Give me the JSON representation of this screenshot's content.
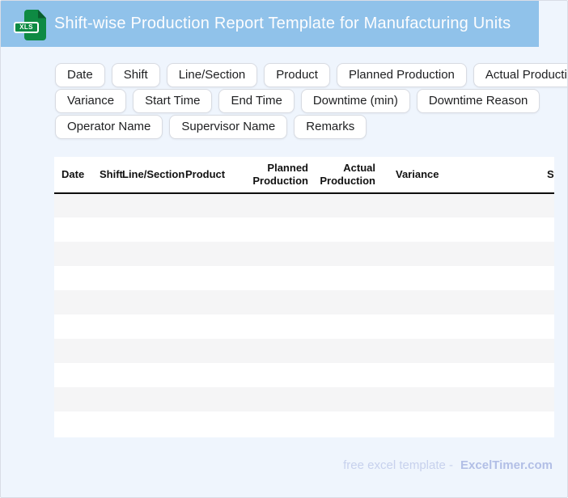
{
  "header": {
    "title": "Shift-wise Production Report Template for Manufacturing Units",
    "file_badge": "XLS"
  },
  "chips": {
    "rows": [
      [
        "Date",
        "Shift",
        "Line/Section",
        "Product",
        "Planned Production",
        "Actual Production"
      ],
      [
        "Variance",
        "Start Time",
        "End Time",
        "Downtime (min)",
        "Downtime Reason"
      ],
      [
        "Operator Name",
        "Supervisor Name",
        "Remarks"
      ]
    ]
  },
  "table": {
    "columns": [
      "Date",
      "Shift",
      "Line/Section",
      "Product",
      "Planned Production",
      "Actual Production",
      "Variance",
      "Start Time"
    ],
    "empty_row_count": 10
  },
  "footer": {
    "text": "free excel template -",
    "brand": "ExcelTimer.com"
  },
  "colors": {
    "header_bg": "#90c2ea",
    "page_bg": "#eff5fd",
    "icon_green": "#0e8a43",
    "icon_green_dark": "#0a5e2e",
    "stripe": "#f5f5f6",
    "chip_border": "#d8dbe2",
    "footer_text": "#c7d1ed",
    "footer_brand": "#b2bfe6"
  }
}
